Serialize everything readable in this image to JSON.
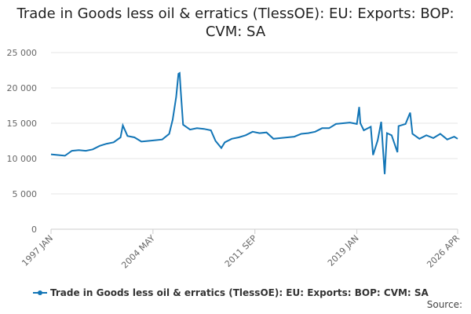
{
  "chart_data": {
    "type": "line",
    "title": "Trade in Goods less oil & erratics (TlessOE): EU: Exports: BOP: CVM: SA",
    "source": "Source:",
    "x": [
      "1997 JAN",
      "1997 JUL",
      "1998 JAN",
      "1998 JUL",
      "1999 JAN",
      "1999 JUL",
      "2000 JAN",
      "2000 JUL",
      "2001 JAN",
      "2001 JUL",
      "2002 JAN",
      "2002 MAR",
      "2002 JUL",
      "2003 JAN",
      "2003 JUL",
      "2004 JAN",
      "2004 JUL",
      "2005 JAN",
      "2005 JUL",
      "2005 OCT",
      "2006 JAN",
      "2006 MAR",
      "2006 APR",
      "2006 MAY",
      "2006 JUL",
      "2007 JAN",
      "2007 JUL",
      "2008 JAN",
      "2008 JUL",
      "2008 NOV",
      "2009 APR",
      "2009 JUL",
      "2010 JAN",
      "2010 JUL",
      "2011 JAN",
      "2011 JUL",
      "2012 JAN",
      "2012 JUL",
      "2013 JAN",
      "2013 JUL",
      "2014 JAN",
      "2014 JUL",
      "2015 JAN",
      "2015 JUL",
      "2016 JAN",
      "2016 JUL",
      "2017 JAN",
      "2017 JUL",
      "2018 JAN",
      "2018 JUL",
      "2019 JAN",
      "2019 MAR",
      "2019 APR",
      "2019 JUL",
      "2020 JAN",
      "2020 MAR",
      "2020 JUL",
      "2020 OCT",
      "2021 JAN",
      "2021 MAR",
      "2021 JUL",
      "2021 DEC",
      "2022 JAN",
      "2022 JUL",
      "2022 NOV",
      "2023 JAN",
      "2023 JUL",
      "2024 JAN",
      "2024 JUL",
      "2025 JAN",
      "2025 JUL",
      "2026 JAN",
      "2026 APR"
    ],
    "series": [
      {
        "name": "Trade in Goods less oil & erratics (TlessOE): EU: Exports: BOP: CVM: SA",
        "color": "#1275b6",
        "values": [
          10600,
          10500,
          10400,
          11100,
          11200,
          11100,
          11300,
          11800,
          12100,
          12300,
          13000,
          14700,
          13200,
          13000,
          12400,
          12500,
          12600,
          12700,
          13500,
          15500,
          18700,
          22000,
          22100,
          19500,
          14800,
          14100,
          14300,
          14200,
          14000,
          12500,
          11500,
          12300,
          12800,
          13000,
          13300,
          13800,
          13600,
          13700,
          12800,
          12900,
          13000,
          13100,
          13500,
          13600,
          13800,
          14300,
          14300,
          14900,
          15000,
          15100,
          14900,
          17300,
          15000,
          14000,
          14500,
          10500,
          12600,
          15200,
          7800,
          13600,
          13300,
          10900,
          14600,
          14900,
          16500,
          13500,
          12800,
          13300,
          12900,
          13500,
          12700,
          13100,
          12800
        ]
      }
    ],
    "xlim": [
      "1997 JAN",
      "2026 APR"
    ],
    "xticks": [
      "1997 JAN",
      "2004 MAY",
      "2011 SEP",
      "2019 JAN",
      "2026 APR"
    ],
    "ylim": [
      0,
      25000
    ],
    "yticks": [
      0,
      {
        "value": 5000,
        "label": "5 000"
      },
      {
        "value": 10000,
        "label": "10 000"
      },
      {
        "value": 15000,
        "label": "15 000"
      },
      {
        "value": 20000,
        "label": "20 000"
      },
      {
        "value": 25000,
        "label": "25 000"
      }
    ],
    "grid": true
  }
}
